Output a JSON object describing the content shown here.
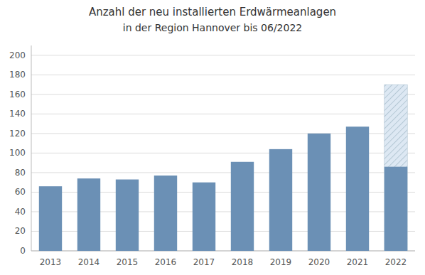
{
  "chart_data": {
    "type": "bar",
    "title": "Anzahl der neu installierten Erdwärmeanlagen",
    "subtitle": "in der Region Hannover bis 06/2022",
    "categories": [
      "2013",
      "2014",
      "2015",
      "2016",
      "2017",
      "2018",
      "2019",
      "2020",
      "2021",
      "2022"
    ],
    "values": [
      66,
      74,
      73,
      77,
      70,
      91,
      104,
      120,
      127,
      86
    ],
    "forecast_values": [
      null,
      null,
      null,
      null,
      null,
      null,
      null,
      null,
      null,
      170
    ],
    "color": "#6b90b5",
    "ylim": [
      0,
      210
    ],
    "yticks": [
      0,
      20,
      40,
      60,
      80,
      100,
      120,
      140,
      160,
      180,
      200
    ],
    "grid": true
  }
}
